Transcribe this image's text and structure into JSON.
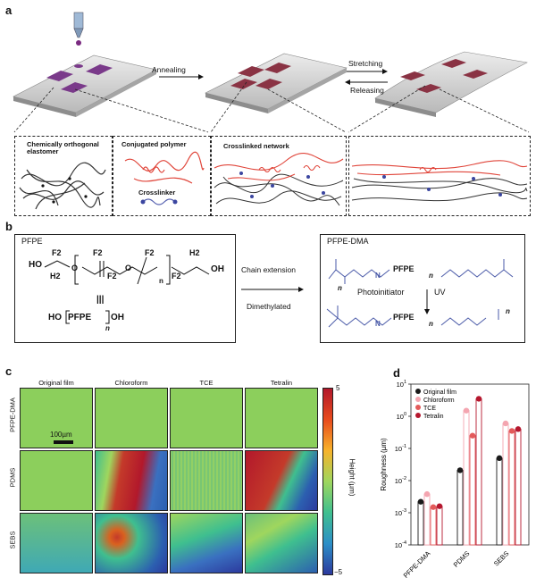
{
  "panels": {
    "a": "a",
    "b": "b",
    "c": "c",
    "d": "d"
  },
  "panel_a": {
    "step1": "Annealing",
    "step2": "Stretching",
    "step3": "Releasing",
    "box1": "Chemically orthogonal elastomer",
    "box2a": "Conjugated polymer",
    "box2b": "Crosslinker",
    "box3": "Crosslinked network"
  },
  "panel_b": {
    "left_title": "PFPE",
    "right_title": "PFPE-DMA",
    "arrow_top": "Chain extension",
    "arrow_bottom": "Dimethylated",
    "eq": "|||",
    "photo": "Photoinitiator",
    "uv": "UV",
    "pfpe_unit": "PFPE",
    "ho": "HO",
    "oh": "OH",
    "n": "n",
    "f2": "F2",
    "h2": "H2",
    "o": "O",
    "h": "H",
    "n_atom": "N"
  },
  "panel_c": {
    "columns": [
      "Original film",
      "Chloroform",
      "TCE",
      "Tetralin"
    ],
    "rows": [
      "PFPE-DMA",
      "PDMS",
      "SEBS"
    ],
    "scale_bar": "100µm",
    "colorbar_label": "Height (µm)",
    "colorbar_max": "5",
    "colorbar_min": "−5",
    "colorbar_colors": [
      "#b2182b",
      "#e84b1d",
      "#f7b32b",
      "#9fd65e",
      "#3fbf8f",
      "#2c8fc7",
      "#2c3a9e"
    ]
  },
  "chart_data": {
    "type": "bar",
    "ylabel": "Roughness (µm)",
    "yscale": "log",
    "ylim": [
      0.0001,
      10
    ],
    "yticks": [
      "10^-4",
      "10^-3",
      "10^-2",
      "10^-1",
      "10^0",
      "10^1"
    ],
    "categories": [
      "PFPE-DMA",
      "PDMS",
      "SEBS"
    ],
    "series": [
      {
        "name": "Original film",
        "color": "#1a1a1a",
        "values": [
          0.0022,
          0.021,
          0.05
        ]
      },
      {
        "name": "Chloroform",
        "color": "#f4a5b0",
        "values": [
          0.0038,
          1.5,
          0.6
        ]
      },
      {
        "name": "TCE",
        "color": "#e35a5a",
        "values": [
          0.0015,
          0.25,
          0.35
        ]
      },
      {
        "name": "Tetralin",
        "color": "#b5172e",
        "values": [
          0.0016,
          3.5,
          0.4
        ]
      }
    ],
    "xticklabels": [
      "PFPE-DMA",
      "PDMS",
      "SEBS"
    ]
  }
}
